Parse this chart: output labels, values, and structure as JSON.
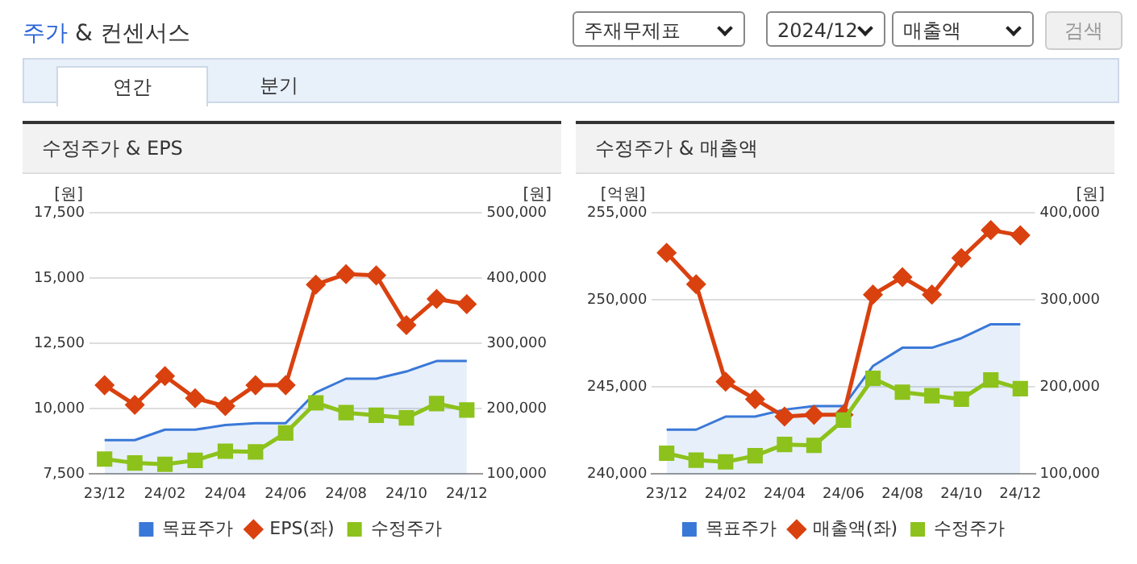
{
  "chart_data": [
    {
      "type": "line",
      "title": "수정주가 & EPS",
      "annotations": [
        "주가 & 컨센서스",
        "연간",
        "분기",
        "주재무제표",
        "2024/12",
        "매출액",
        "검색"
      ],
      "categories": [
        "23/12",
        null,
        "24/02",
        null,
        "24/04",
        null,
        "24/06",
        null,
        "24/08",
        null,
        "24/10",
        null,
        "24/12"
      ],
      "ylabel": "[원]",
      "y2label": "[원]",
      "ylim": [
        7500,
        17500
      ],
      "yticks": [
        {
          "value": 7500,
          "label": "7,500"
        },
        {
          "value": 10000,
          "label": "10,000"
        },
        {
          "value": 12500,
          "label": "12,500"
        },
        {
          "value": 15000,
          "label": "15,000"
        },
        {
          "value": 17500,
          "label": "17,500"
        }
      ],
      "y2lim": [
        100000,
        500000
      ],
      "y2ticks": [
        {
          "value": 100000,
          "label": "100,000"
        },
        {
          "value": 200000,
          "label": "200,000"
        },
        {
          "value": 300000,
          "label": "300,000"
        },
        {
          "value": 400000,
          "label": "400,000"
        },
        {
          "value": 500000,
          "label": "500,000"
        }
      ],
      "series": [
        {
          "name": "목표주가",
          "type": "area",
          "axis": "y2",
          "color": "#3a78d8",
          "marker": "none",
          "values": [
            152000,
            152000,
            168000,
            168000,
            175000,
            178000,
            178000,
            225000,
            246000,
            246000,
            257000,
            273000,
            273000
          ]
        },
        {
          "name": "EPS(좌)",
          "type": "line",
          "color": "#d9410f",
          "marker": "diamond",
          "values": [
            10900,
            10150,
            11250,
            10400,
            10100,
            10900,
            10900,
            14750,
            15150,
            15100,
            13200,
            14200,
            14000
          ]
        },
        {
          "name": "수정주가",
          "type": "line",
          "axis": "y2",
          "color": "#8cc21b",
          "marker": "square",
          "values": [
            123000,
            117000,
            115000,
            121000,
            135000,
            134000,
            163000,
            209000,
            194000,
            190000,
            186000,
            208000,
            198000
          ]
        }
      ],
      "grid": "y",
      "legend": "bottom"
    },
    {
      "type": "line",
      "title": "수정주가 & 매출액",
      "categories": [
        "23/12",
        null,
        "24/02",
        null,
        "24/04",
        null,
        "24/06",
        null,
        "24/08",
        null,
        "24/10",
        null,
        "24/12"
      ],
      "ylabel": "[억원]",
      "y2label": "[원]",
      "ylim": [
        240000,
        255000
      ],
      "yticks": [
        {
          "value": 240000,
          "label": "240,000"
        },
        {
          "value": 245000,
          "label": "245,000"
        },
        {
          "value": 250000,
          "label": "250,000"
        },
        {
          "value": 255000,
          "label": "255,000"
        }
      ],
      "y2lim": [
        100000,
        400000
      ],
      "y2ticks": [
        {
          "value": 100000,
          "label": "100,000"
        },
        {
          "value": 200000,
          "label": "200,000"
        },
        {
          "value": 300000,
          "label": "300,000"
        },
        {
          "value": 400000,
          "label": "400,000"
        }
      ],
      "series": [
        {
          "name": "목표주가",
          "type": "area",
          "axis": "y2",
          "color": "#3a78d8",
          "marker": "none",
          "values": [
            151000,
            151000,
            166000,
            166000,
            174000,
            178000,
            178000,
            224000,
            245000,
            245000,
            256000,
            272000,
            272000
          ]
        },
        {
          "name": "매출액(좌)",
          "type": "line",
          "color": "#d9410f",
          "marker": "diamond",
          "values": [
            252700,
            250900,
            245300,
            244300,
            243300,
            243400,
            243400,
            250300,
            251300,
            250300,
            252400,
            254000,
            253700
          ]
        },
        {
          "name": "수정주가",
          "type": "line",
          "axis": "y2",
          "color": "#8cc21b",
          "marker": "square",
          "values": [
            124000,
            116000,
            114000,
            121000,
            134000,
            133000,
            162000,
            210000,
            194000,
            190000,
            186000,
            208000,
            198000
          ]
        }
      ],
      "grid": "y",
      "legend": "bottom"
    }
  ]
}
